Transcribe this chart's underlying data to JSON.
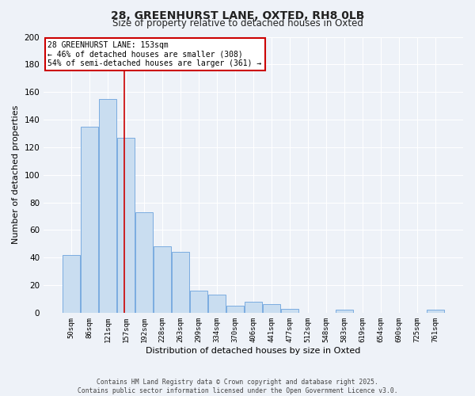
{
  "title": "28, GREENHURST LANE, OXTED, RH8 0LB",
  "subtitle": "Size of property relative to detached houses in Oxted",
  "xlabel": "Distribution of detached houses by size in Oxted",
  "ylabel": "Number of detached properties",
  "categories": [
    "50sqm",
    "86sqm",
    "121sqm",
    "157sqm",
    "192sqm",
    "228sqm",
    "263sqm",
    "299sqm",
    "334sqm",
    "370sqm",
    "406sqm",
    "441sqm",
    "477sqm",
    "512sqm",
    "548sqm",
    "583sqm",
    "619sqm",
    "654sqm",
    "690sqm",
    "725sqm",
    "761sqm"
  ],
  "values": [
    42,
    135,
    155,
    127,
    73,
    48,
    44,
    16,
    13,
    5,
    8,
    6,
    3,
    0,
    0,
    2,
    0,
    0,
    0,
    0,
    2
  ],
  "bar_color": "#c9ddf0",
  "bar_edge_color": "#7aace0",
  "background_color": "#eef2f8",
  "grid_color": "#ffffff",
  "ylim": [
    0,
    200
  ],
  "yticks": [
    0,
    20,
    40,
    60,
    80,
    100,
    120,
    140,
    160,
    180,
    200
  ],
  "property_line_color": "#cc0000",
  "annotation_text_line1": "28 GREENHURST LANE: 153sqm",
  "annotation_text_line2": "← 46% of detached houses are smaller (308)",
  "annotation_text_line3": "54% of semi-detached houses are larger (361) →",
  "annotation_box_color": "#ffffff",
  "annotation_box_edge_color": "#cc0000",
  "footer_line1": "Contains HM Land Registry data © Crown copyright and database right 2025.",
  "footer_line2": "Contains public sector information licensed under the Open Government Licence v3.0."
}
